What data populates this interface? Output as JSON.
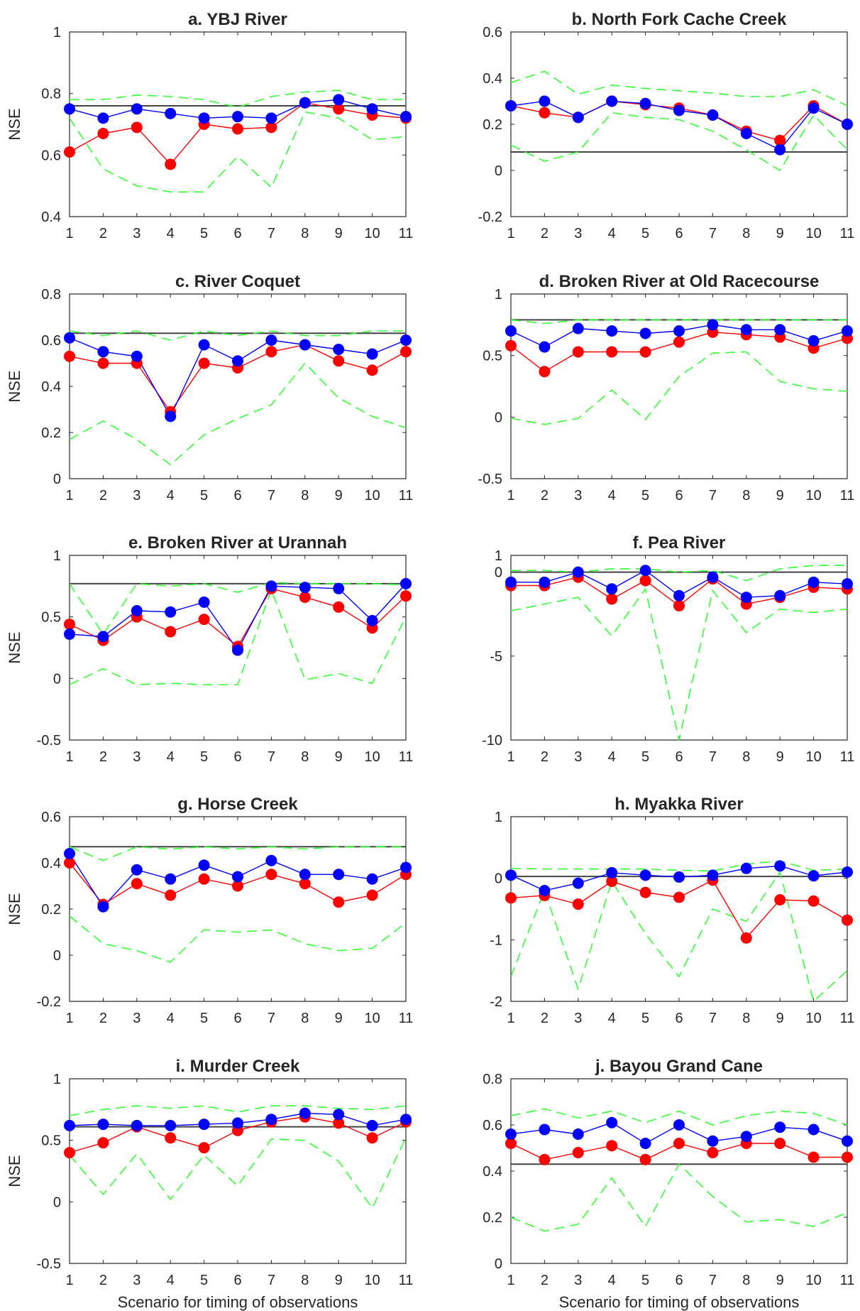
{
  "figure": {
    "colors": {
      "blue": "#0000ff",
      "red": "#ff0000",
      "green": "#33ff33",
      "black": "#444444"
    }
  },
  "chart_data": [
    {
      "type": "line",
      "title": "a. YBJ River",
      "ylabel": "NSE",
      "xlabel": "",
      "x": [
        1,
        2,
        3,
        4,
        5,
        6,
        7,
        8,
        9,
        10,
        11
      ],
      "ylim": [
        0.4,
        1
      ],
      "yticks": [
        0.4,
        0.6,
        0.8,
        1
      ],
      "ytick_labels": [
        "0.4",
        "0.6",
        "0.8",
        "1"
      ],
      "reference": 0.76,
      "series": [
        {
          "color": "blue",
          "marker": true,
          "values": [
            0.75,
            0.72,
            0.75,
            0.735,
            0.72,
            0.725,
            0.72,
            0.77,
            0.78,
            0.75,
            0.725
          ]
        },
        {
          "color": "red",
          "marker": true,
          "values": [
            0.61,
            0.67,
            0.69,
            0.57,
            0.7,
            0.685,
            0.69,
            0.77,
            0.75,
            0.73,
            0.72
          ]
        },
        {
          "color": "green",
          "dashed": true,
          "values": [
            0.78,
            0.78,
            0.795,
            0.79,
            0.78,
            0.755,
            0.79,
            0.805,
            0.81,
            0.78,
            0.78
          ]
        },
        {
          "color": "green",
          "dashed": true,
          "values": [
            0.72,
            0.555,
            0.5,
            0.48,
            0.48,
            0.595,
            0.495,
            0.74,
            0.72,
            0.65,
            0.66
          ]
        }
      ]
    },
    {
      "type": "line",
      "title": "b. North Fork Cache Creek",
      "ylabel": "",
      "xlabel": "",
      "x": [
        1,
        2,
        3,
        4,
        5,
        6,
        7,
        8,
        9,
        10,
        11
      ],
      "ylim": [
        -0.2,
        0.6
      ],
      "yticks": [
        -0.2,
        0,
        0.2,
        0.4,
        0.6
      ],
      "ytick_labels": [
        "-0.2",
        "0",
        "0.2",
        "0.4",
        "0.6"
      ],
      "reference": 0.08,
      "series": [
        {
          "color": "blue",
          "marker": true,
          "values": [
            0.28,
            0.3,
            0.23,
            0.3,
            0.29,
            0.26,
            0.24,
            0.16,
            0.09,
            0.27,
            0.2
          ]
        },
        {
          "color": "red",
          "marker": true,
          "values": [
            0.28,
            0.25,
            0.23,
            0.3,
            0.285,
            0.27,
            0.24,
            0.17,
            0.13,
            0.28,
            0.2
          ]
        },
        {
          "color": "green",
          "dashed": true,
          "values": [
            0.38,
            0.43,
            0.33,
            0.37,
            0.355,
            0.345,
            0.335,
            0.32,
            0.32,
            0.35,
            0.28
          ]
        },
        {
          "color": "green",
          "dashed": true,
          "values": [
            0.11,
            0.04,
            0.08,
            0.25,
            0.23,
            0.22,
            0.17,
            0.09,
            0.0,
            0.24,
            0.09
          ]
        }
      ]
    },
    {
      "type": "line",
      "title": "c. River Coquet",
      "ylabel": "NSE",
      "xlabel": "",
      "x": [
        1,
        2,
        3,
        4,
        5,
        6,
        7,
        8,
        9,
        10,
        11
      ],
      "ylim": [
        0,
        0.8
      ],
      "yticks": [
        0,
        0.2,
        0.4,
        0.6,
        0.8
      ],
      "ytick_labels": [
        "0",
        "0.2",
        "0.4",
        "0.6",
        "0.8"
      ],
      "reference": 0.63,
      "series": [
        {
          "color": "blue",
          "marker": true,
          "values": [
            0.61,
            0.55,
            0.53,
            0.27,
            0.58,
            0.51,
            0.6,
            0.58,
            0.56,
            0.54,
            0.6
          ]
        },
        {
          "color": "red",
          "marker": true,
          "values": [
            0.53,
            0.5,
            0.5,
            0.29,
            0.5,
            0.48,
            0.55,
            0.58,
            0.51,
            0.47,
            0.55
          ]
        },
        {
          "color": "green",
          "dashed": true,
          "values": [
            0.64,
            0.62,
            0.64,
            0.6,
            0.64,
            0.62,
            0.64,
            0.62,
            0.62,
            0.64,
            0.64
          ]
        },
        {
          "color": "green",
          "dashed": true,
          "values": [
            0.17,
            0.25,
            0.17,
            0.06,
            0.19,
            0.26,
            0.32,
            0.5,
            0.35,
            0.27,
            0.22
          ]
        }
      ]
    },
    {
      "type": "line",
      "title": "d. Broken River at Old Racecourse",
      "ylabel": "",
      "xlabel": "",
      "x": [
        1,
        2,
        3,
        4,
        5,
        6,
        7,
        8,
        9,
        10,
        11
      ],
      "ylim": [
        -0.5,
        1
      ],
      "yticks": [
        -0.5,
        0,
        0.5,
        1
      ],
      "ytick_labels": [
        "-0.5",
        "0",
        "0.5",
        "1"
      ],
      "reference": 0.79,
      "series": [
        {
          "color": "blue",
          "marker": true,
          "values": [
            0.7,
            0.57,
            0.72,
            0.7,
            0.68,
            0.7,
            0.75,
            0.71,
            0.71,
            0.62,
            0.7
          ]
        },
        {
          "color": "red",
          "marker": true,
          "values": [
            0.58,
            0.37,
            0.53,
            0.53,
            0.53,
            0.61,
            0.69,
            0.67,
            0.65,
            0.56,
            0.64
          ]
        },
        {
          "color": "green",
          "dashed": true,
          "values": [
            0.79,
            0.76,
            0.79,
            0.79,
            0.79,
            0.79,
            0.79,
            0.79,
            0.79,
            0.79,
            0.79
          ]
        },
        {
          "color": "green",
          "dashed": true,
          "values": [
            -0.01,
            -0.06,
            -0.01,
            0.22,
            -0.02,
            0.33,
            0.52,
            0.53,
            0.29,
            0.23,
            0.21
          ]
        }
      ]
    },
    {
      "type": "line",
      "title": "e. Broken River at Urannah",
      "ylabel": "NSE",
      "xlabel": "",
      "x": [
        1,
        2,
        3,
        4,
        5,
        6,
        7,
        8,
        9,
        10,
        11
      ],
      "ylim": [
        -0.5,
        1
      ],
      "yticks": [
        -0.5,
        0,
        0.5,
        1
      ],
      "ytick_labels": [
        "-0.5",
        "0",
        "0.5",
        "1"
      ],
      "reference": 0.77,
      "series": [
        {
          "color": "blue",
          "marker": true,
          "values": [
            0.36,
            0.34,
            0.55,
            0.54,
            0.62,
            0.23,
            0.75,
            0.74,
            0.73,
            0.47,
            0.77
          ]
        },
        {
          "color": "red",
          "marker": true,
          "values": [
            0.44,
            0.31,
            0.5,
            0.38,
            0.48,
            0.26,
            0.73,
            0.66,
            0.58,
            0.41,
            0.67
          ]
        },
        {
          "color": "green",
          "dashed": true,
          "values": [
            0.77,
            0.36,
            0.77,
            0.75,
            0.77,
            0.7,
            0.78,
            0.77,
            0.77,
            0.77,
            0.76
          ]
        },
        {
          "color": "green",
          "dashed": true,
          "values": [
            -0.05,
            0.08,
            -0.05,
            -0.04,
            -0.05,
            -0.05,
            0.72,
            -0.01,
            0.04,
            -0.04,
            0.5
          ]
        }
      ]
    },
    {
      "type": "line",
      "title": "f. Pea River",
      "ylabel": "",
      "xlabel": "",
      "x": [
        1,
        2,
        3,
        4,
        5,
        6,
        7,
        8,
        9,
        10,
        11
      ],
      "ylim": [
        -10,
        1
      ],
      "yticks": [
        -10,
        -5,
        0,
        1
      ],
      "ytick_labels": [
        "-10",
        "-5",
        "0",
        "1"
      ],
      "reference": 0,
      "series": [
        {
          "color": "blue",
          "marker": true,
          "values": [
            -0.6,
            -0.6,
            0.0,
            -1.0,
            0.1,
            -1.4,
            -0.3,
            -1.5,
            -1.4,
            -0.6,
            -0.7
          ]
        },
        {
          "color": "red",
          "marker": true,
          "values": [
            -0.8,
            -0.8,
            -0.3,
            -1.6,
            -0.5,
            -2.0,
            -0.4,
            -1.9,
            -1.5,
            -0.9,
            -1.0
          ]
        },
        {
          "color": "green",
          "dashed": true,
          "values": [
            0.1,
            0.1,
            0.0,
            0.2,
            0.2,
            0.0,
            0.1,
            -0.5,
            0.2,
            0.4,
            0.4
          ]
        },
        {
          "color": "green",
          "dashed": true,
          "values": [
            -2.3,
            -1.9,
            -1.5,
            -3.8,
            -1.0,
            -10.0,
            -1.1,
            -3.6,
            -2.2,
            -2.4,
            -2.2
          ]
        }
      ]
    },
    {
      "type": "line",
      "title": "g. Horse Creek",
      "ylabel": "NSE",
      "xlabel": "",
      "x": [
        1,
        2,
        3,
        4,
        5,
        6,
        7,
        8,
        9,
        10,
        11
      ],
      "ylim": [
        -0.2,
        0.6
      ],
      "yticks": [
        -0.2,
        0,
        0.2,
        0.4,
        0.6
      ],
      "ytick_labels": [
        "-0.2",
        "0",
        "0.2",
        "0.4",
        "0.6"
      ],
      "reference": 0.47,
      "series": [
        {
          "color": "blue",
          "marker": true,
          "values": [
            0.44,
            0.21,
            0.37,
            0.33,
            0.39,
            0.34,
            0.41,
            0.35,
            0.35,
            0.33,
            0.38
          ]
        },
        {
          "color": "red",
          "marker": true,
          "values": [
            0.4,
            0.22,
            0.31,
            0.26,
            0.33,
            0.3,
            0.35,
            0.31,
            0.23,
            0.26,
            0.35
          ]
        },
        {
          "color": "green",
          "dashed": true,
          "values": [
            0.47,
            0.41,
            0.47,
            0.46,
            0.47,
            0.46,
            0.47,
            0.46,
            0.47,
            0.47,
            0.47
          ]
        },
        {
          "color": "green",
          "dashed": true,
          "values": [
            0.17,
            0.05,
            0.02,
            -0.03,
            0.11,
            0.1,
            0.11,
            0.05,
            0.02,
            0.03,
            0.14
          ]
        }
      ]
    },
    {
      "type": "line",
      "title": "h. Myakka River",
      "ylabel": "",
      "xlabel": "",
      "x": [
        1,
        2,
        3,
        4,
        5,
        6,
        7,
        8,
        9,
        10,
        11
      ],
      "ylim": [
        -2,
        1
      ],
      "yticks": [
        -2,
        -1,
        0,
        1
      ],
      "ytick_labels": [
        "-2",
        "-1",
        "0",
        "1"
      ],
      "reference": 0.03,
      "series": [
        {
          "color": "blue",
          "marker": true,
          "values": [
            0.05,
            -0.2,
            -0.08,
            0.09,
            0.05,
            0.02,
            0.05,
            0.16,
            0.2,
            0.04,
            0.1
          ]
        },
        {
          "color": "red",
          "marker": true,
          "values": [
            -0.32,
            -0.28,
            -0.42,
            -0.05,
            -0.23,
            -0.31,
            -0.03,
            -0.97,
            -0.35,
            -0.37,
            -0.68
          ]
        },
        {
          "color": "green",
          "dashed": true,
          "values": [
            0.16,
            0.15,
            0.15,
            0.15,
            0.15,
            0.13,
            0.12,
            0.23,
            0.28,
            0.13,
            0.15
          ]
        },
        {
          "color": "green",
          "dashed": true,
          "values": [
            -1.6,
            -0.2,
            -1.8,
            -0.05,
            -0.9,
            -1.6,
            -0.5,
            -0.7,
            0.1,
            -2.0,
            -1.5
          ]
        }
      ]
    },
    {
      "type": "line",
      "title": "i. Murder Creek",
      "ylabel": "NSE",
      "xlabel": "Scenario for timing of observations",
      "x": [
        1,
        2,
        3,
        4,
        5,
        6,
        7,
        8,
        9,
        10,
        11
      ],
      "ylim": [
        -0.5,
        1
      ],
      "yticks": [
        -0.5,
        0,
        0.5,
        1
      ],
      "ytick_labels": [
        "-0.5",
        "0",
        "0.5",
        "1"
      ],
      "reference": 0.61,
      "series": [
        {
          "color": "blue",
          "marker": true,
          "values": [
            0.62,
            0.63,
            0.62,
            0.62,
            0.63,
            0.64,
            0.67,
            0.72,
            0.71,
            0.62,
            0.67
          ]
        },
        {
          "color": "red",
          "marker": true,
          "values": [
            0.4,
            0.48,
            0.61,
            0.52,
            0.44,
            0.58,
            0.65,
            0.69,
            0.64,
            0.52,
            0.65
          ]
        },
        {
          "color": "green",
          "dashed": true,
          "values": [
            0.7,
            0.75,
            0.78,
            0.76,
            0.78,
            0.73,
            0.78,
            0.78,
            0.76,
            0.75,
            0.78
          ]
        },
        {
          "color": "green",
          "dashed": true,
          "values": [
            0.38,
            0.06,
            0.39,
            0.02,
            0.38,
            0.13,
            0.51,
            0.5,
            0.33,
            -0.05,
            0.52
          ]
        }
      ]
    },
    {
      "type": "line",
      "title": "j. Bayou Grand Cane",
      "ylabel": "",
      "xlabel": "Scenario for timing of observations",
      "x": [
        1,
        2,
        3,
        4,
        5,
        6,
        7,
        8,
        9,
        10,
        11
      ],
      "ylim": [
        0,
        0.8
      ],
      "yticks": [
        0,
        0.2,
        0.4,
        0.6,
        0.8
      ],
      "ytick_labels": [
        "0",
        "0.2",
        "0.4",
        "0.6",
        "0.8"
      ],
      "reference": 0.43,
      "series": [
        {
          "color": "blue",
          "marker": true,
          "values": [
            0.56,
            0.58,
            0.56,
            0.61,
            0.52,
            0.6,
            0.53,
            0.55,
            0.59,
            0.58,
            0.53
          ]
        },
        {
          "color": "red",
          "marker": true,
          "values": [
            0.52,
            0.45,
            0.48,
            0.51,
            0.45,
            0.52,
            0.48,
            0.52,
            0.52,
            0.46,
            0.46
          ]
        },
        {
          "color": "green",
          "dashed": true,
          "values": [
            0.64,
            0.67,
            0.63,
            0.66,
            0.61,
            0.66,
            0.6,
            0.64,
            0.66,
            0.65,
            0.6
          ]
        },
        {
          "color": "green",
          "dashed": true,
          "values": [
            0.2,
            0.14,
            0.17,
            0.37,
            0.16,
            0.43,
            0.29,
            0.18,
            0.19,
            0.16,
            0.22
          ]
        }
      ]
    }
  ]
}
